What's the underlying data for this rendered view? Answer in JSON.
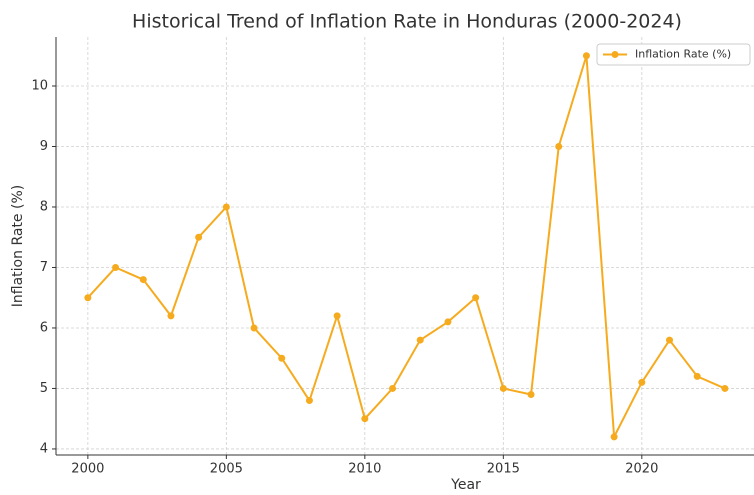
{
  "chart_data": {
    "type": "line",
    "title": "Historical Trend of Inflation Rate in Honduras (2000-2024)",
    "xlabel": "Year",
    "ylabel": "Inflation Rate (%)",
    "x": [
      2000,
      2001,
      2002,
      2003,
      2004,
      2005,
      2006,
      2007,
      2008,
      2009,
      2010,
      2011,
      2012,
      2013,
      2014,
      2015,
      2016,
      2017,
      2018,
      2019,
      2020,
      2021,
      2022,
      2023
    ],
    "series": [
      {
        "name": "Inflation Rate (%)",
        "color": "#f6ab1f",
        "values": [
          6.5,
          7.0,
          6.8,
          6.2,
          7.5,
          8.0,
          6.0,
          5.5,
          4.8,
          6.2,
          4.5,
          5.0,
          5.8,
          6.1,
          6.5,
          5.0,
          4.9,
          9.0,
          10.5,
          4.2,
          5.1,
          5.8,
          5.2,
          5.0
        ]
      }
    ],
    "xlim": [
      1998.85,
      2024.05
    ],
    "xticks": [
      2000,
      2005,
      2010,
      2015,
      2020
    ],
    "ylim": [
      3.9,
      10.81
    ],
    "yticks": [
      4,
      5,
      6,
      7,
      8,
      9,
      10
    ],
    "grid": true,
    "legend": "upper right"
  }
}
